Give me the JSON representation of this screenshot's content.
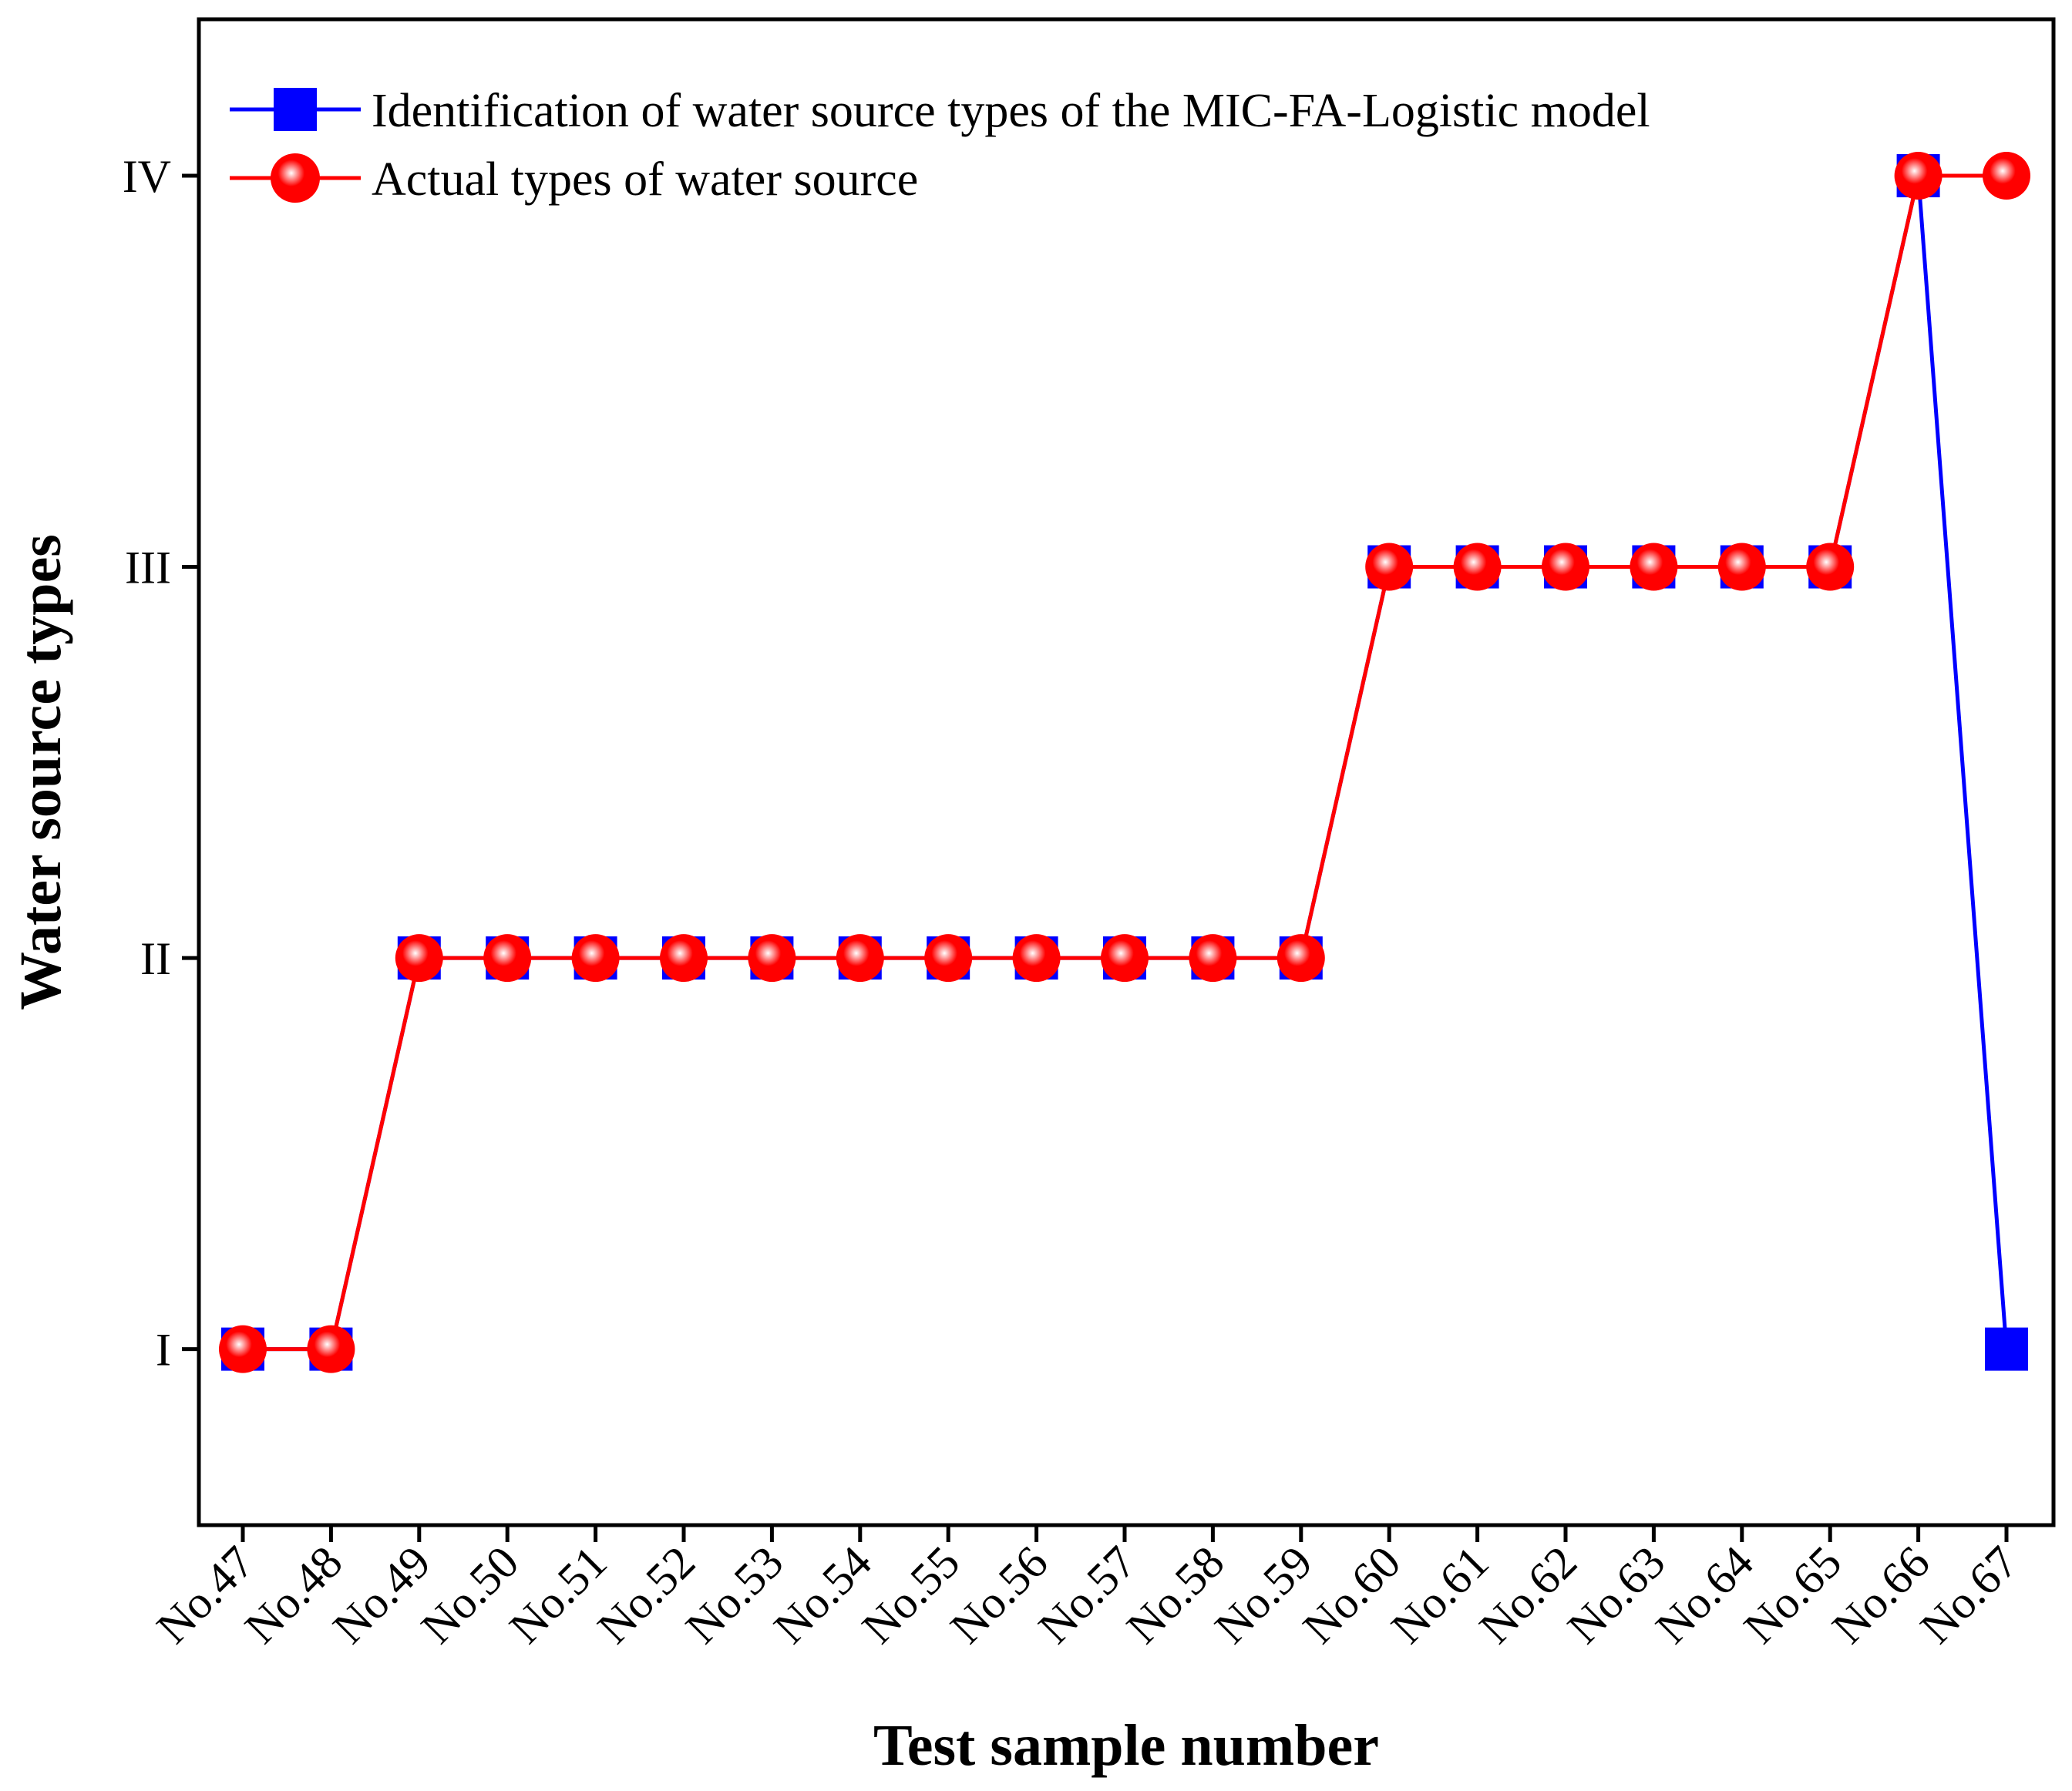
{
  "chart_data": {
    "type": "line",
    "xlabel": "Test sample number",
    "ylabel": "Water source types",
    "categories": [
      "No.47",
      "No.48",
      "No.49",
      "No.50",
      "No.51",
      "No.52",
      "No.53",
      "No.54",
      "No.55",
      "No.56",
      "No.57",
      "No.58",
      "No.59",
      "No.60",
      "No.61",
      "No.62",
      "No.63",
      "No.64",
      "No.65",
      "No.66",
      "No.67"
    ],
    "y_ticks": [
      {
        "value": 1,
        "label": "I"
      },
      {
        "value": 2,
        "label": "II"
      },
      {
        "value": 3,
        "label": "III"
      },
      {
        "value": 4,
        "label": "IV"
      }
    ],
    "ylim": [
      0.55,
      4.4
    ],
    "legend_position": "top-left",
    "series": [
      {
        "name": "Identification of water source types of the MIC-FA-Logistic model",
        "color": "#0000ff",
        "marker": "square",
        "values": [
          1,
          1,
          2,
          2,
          2,
          2,
          2,
          2,
          2,
          2,
          2,
          2,
          2,
          3,
          3,
          3,
          3,
          3,
          3,
          4,
          1
        ]
      },
      {
        "name": "Actual types of water source",
        "color": "#ff0000",
        "marker": "circle",
        "values": [
          1,
          1,
          2,
          2,
          2,
          2,
          2,
          2,
          2,
          2,
          2,
          2,
          2,
          3,
          3,
          3,
          3,
          3,
          3,
          4,
          4
        ]
      }
    ]
  }
}
